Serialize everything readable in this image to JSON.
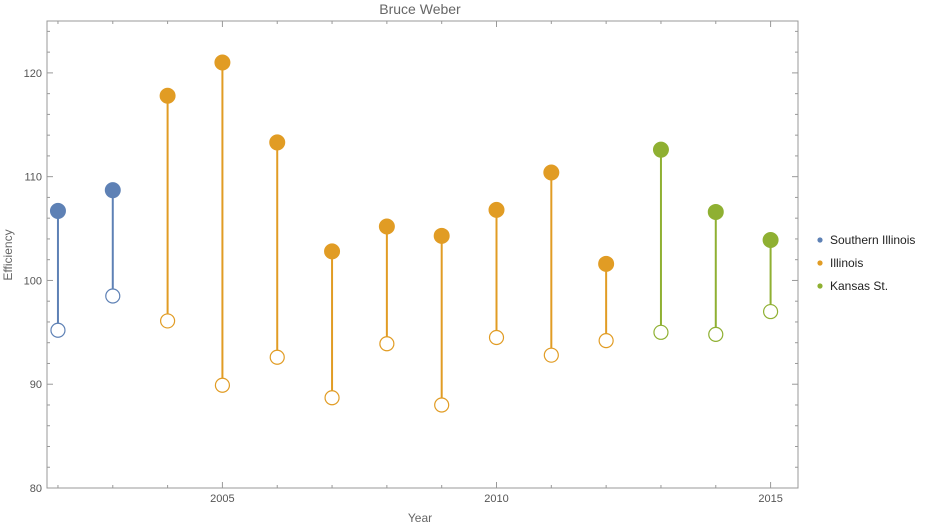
{
  "chart_data": {
    "type": "dumbbell",
    "title": "Bruce Weber",
    "xlabel": "Year",
    "ylabel": "Efficiency",
    "xlim": [
      2001.8,
      2015.5
    ],
    "ylim": [
      80,
      125
    ],
    "xticks": [
      2005,
      2010,
      2015
    ],
    "yticks": [
      80,
      90,
      100,
      110,
      120
    ],
    "legend_position": "right",
    "series": [
      {
        "name": "Southern Illinois",
        "color": "#5e81b5",
        "points": [
          {
            "x": 2002,
            "offense": 106.7,
            "defense": 95.2
          },
          {
            "x": 2003,
            "offense": 108.7,
            "defense": 98.5
          }
        ]
      },
      {
        "name": "Illinois",
        "color": "#e19c24",
        "points": [
          {
            "x": 2004,
            "offense": 117.8,
            "defense": 96.1
          },
          {
            "x": 2005,
            "offense": 121.0,
            "defense": 89.9
          },
          {
            "x": 2006,
            "offense": 113.3,
            "defense": 92.6
          },
          {
            "x": 2007,
            "offense": 102.8,
            "defense": 88.7
          },
          {
            "x": 2008,
            "offense": 105.2,
            "defense": 93.9
          },
          {
            "x": 2009,
            "offense": 104.3,
            "defense": 88.0
          },
          {
            "x": 2010,
            "offense": 106.8,
            "defense": 94.5
          },
          {
            "x": 2011,
            "offense": 110.4,
            "defense": 92.8
          },
          {
            "x": 2012,
            "offense": 101.6,
            "defense": 94.2
          }
        ]
      },
      {
        "name": "Kansas St.",
        "color": "#8fb032",
        "points": [
          {
            "x": 2013,
            "offense": 112.6,
            "defense": 95.0
          },
          {
            "x": 2014,
            "offense": 106.6,
            "defense": 94.8
          },
          {
            "x": 2015,
            "offense": 103.9,
            "defense": 97.0
          }
        ]
      }
    ]
  }
}
